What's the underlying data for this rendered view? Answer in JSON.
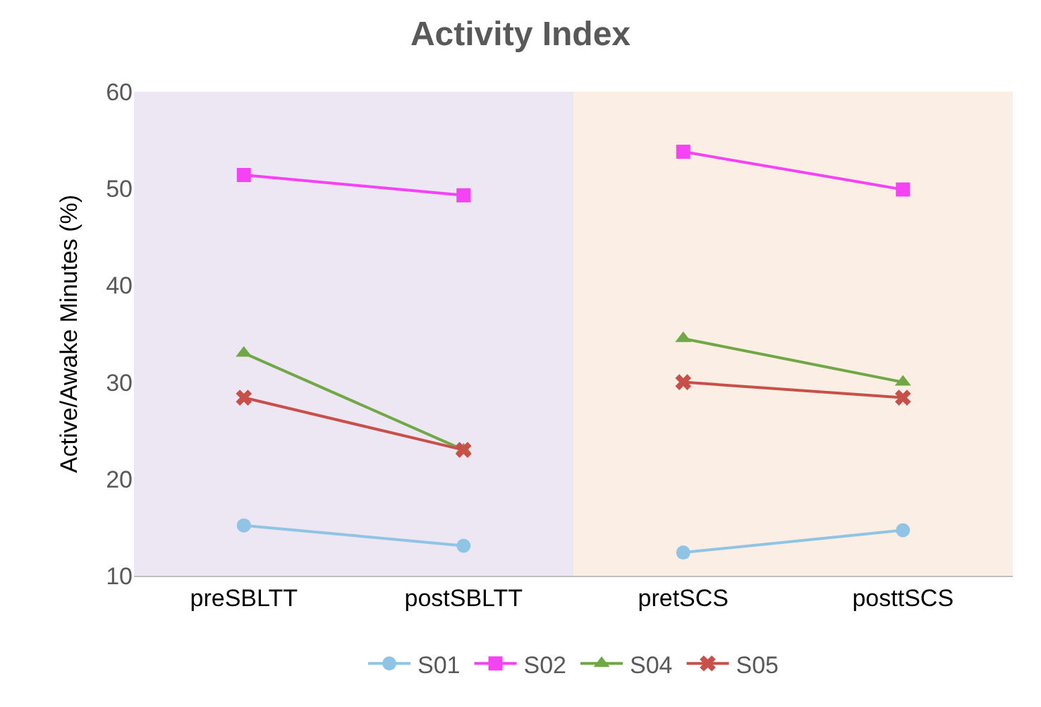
{
  "chart_data": {
    "type": "line",
    "title": "Activity Index",
    "ylabel": "Active/Awake Minutes (%)",
    "categories": [
      "preSBLTT",
      "postSBLTT",
      "pretSCS",
      "posttSCS"
    ],
    "series": [
      {
        "name": "S01",
        "color": "#8fc4e4",
        "marker": "circle",
        "values": [
          15.2,
          13.1,
          12.4,
          14.7
        ]
      },
      {
        "name": "S02",
        "color": "#f542f5",
        "marker": "square",
        "values": [
          51.4,
          49.3,
          53.8,
          49.9
        ]
      },
      {
        "name": "S04",
        "color": "#70a845",
        "marker": "triangle",
        "values": [
          33.0,
          23.0,
          34.5,
          30.0
        ]
      },
      {
        "name": "S05",
        "color": "#c8504a",
        "marker": "cross",
        "values": [
          28.4,
          23.0,
          30.0,
          28.4
        ]
      }
    ],
    "bands": [
      {
        "axis": "x",
        "from": "preSBLTT",
        "to": "postSBLTT",
        "color": "#ede6f3"
      },
      {
        "axis": "x",
        "from": "pretSCS",
        "to": "posttSCS",
        "color": "#fbeee5"
      }
    ],
    "ylim": [
      10,
      60
    ],
    "yticks": [
      10,
      20,
      30,
      40,
      50,
      60
    ],
    "grid": false,
    "legend": "bottom",
    "line_style": "solid"
  }
}
